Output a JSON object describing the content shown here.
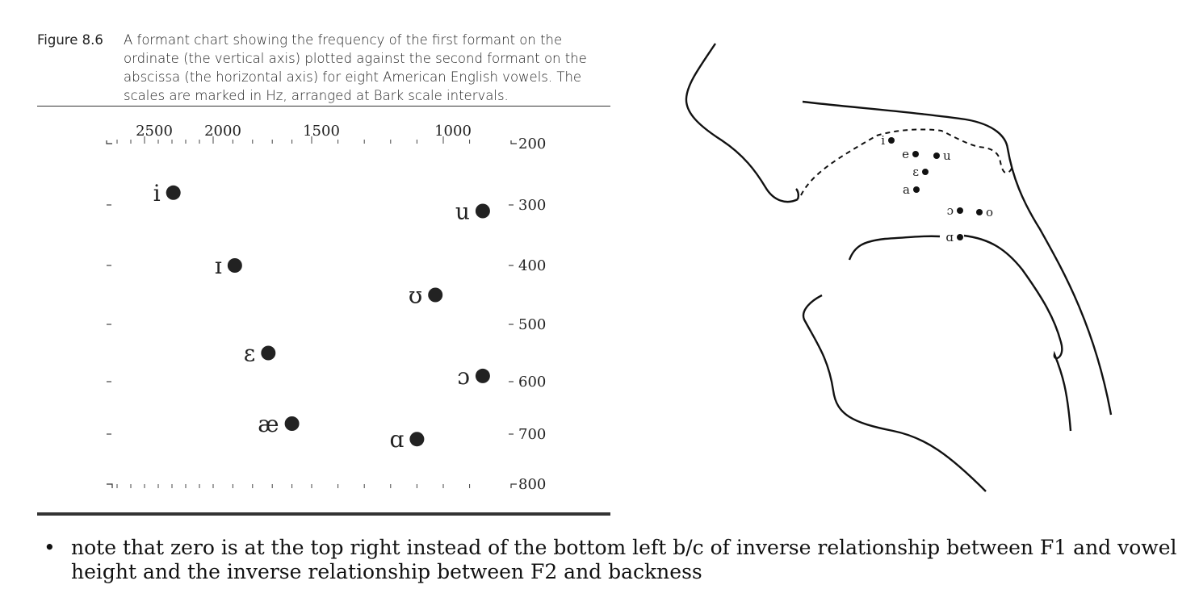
{
  "figure": {
    "number": "Figure 8.6",
    "caption": "A formant chart showing the frequency of the first formant on the ordinate (the vertical axis) plotted against the second formant on the abscissa (the horizontal axis) for eight American English vowels. The scales are marked in Hz, arranged at Bark scale intervals."
  },
  "chart_data": {
    "type": "scatter",
    "title": "",
    "xlabel": "",
    "ylabel": "",
    "x_axis": {
      "quantity": "F2 (Hz)",
      "reversed": true,
      "ticks": [
        2500,
        2000,
        1500,
        1000
      ]
    },
    "y_axis": {
      "quantity": "F1 (Hz)",
      "reversed": true,
      "ticks": [
        200,
        300,
        400,
        500,
        600,
        700,
        800
      ],
      "ylim": [
        200,
        800
      ]
    },
    "points": [
      {
        "label": "i",
        "f2": 2290,
        "f1": 280
      },
      {
        "label": "u",
        "f2": 850,
        "f1": 310
      },
      {
        "label": "ɪ",
        "f2": 1890,
        "f1": 400
      },
      {
        "label": "ʊ",
        "f2": 1030,
        "f1": 450
      },
      {
        "label": "ɛ",
        "f2": 1720,
        "f1": 550
      },
      {
        "label": "ɔ",
        "f2": 850,
        "f1": 590
      },
      {
        "label": "æ",
        "f2": 1600,
        "f1": 680
      },
      {
        "label": "ɑ",
        "f2": 1100,
        "f1": 710
      }
    ],
    "grid": false
  },
  "tract_labels": [
    "i",
    "e",
    "u",
    "ɛ",
    "a",
    "ɔ",
    "o",
    "ɑ"
  ],
  "note": {
    "bullet": "•",
    "text": "note that zero is at the top right instead of the bottom left b/c of inverse relationship between F1 and vowel height and the inverse relationship between F2 and backness"
  }
}
